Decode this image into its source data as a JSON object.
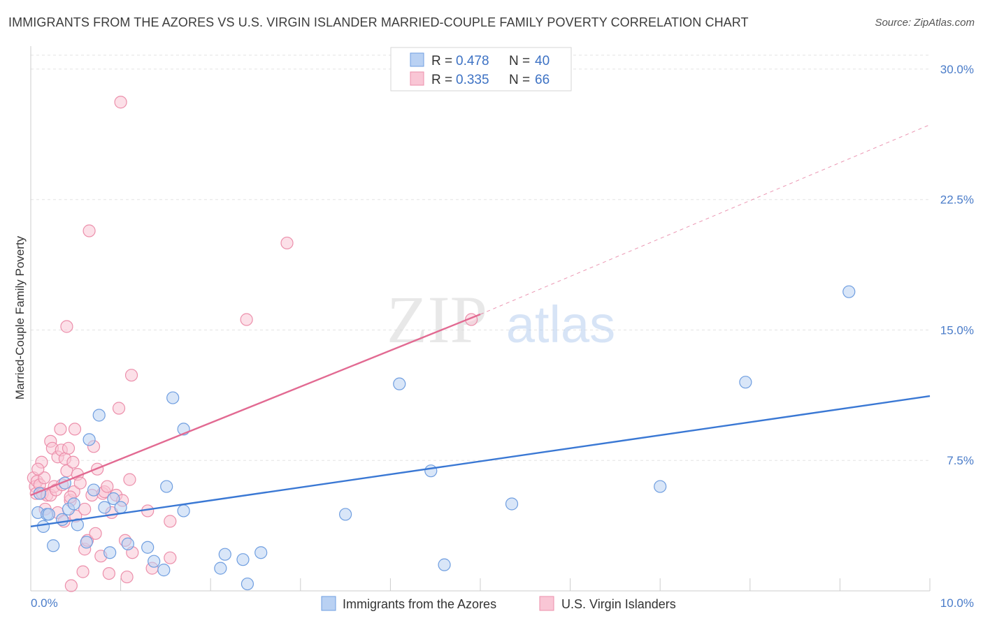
{
  "title": "IMMIGRANTS FROM THE AZORES VS U.S. VIRGIN ISLANDER MARRIED-COUPLE FAMILY POVERTY CORRELATION CHART",
  "source": "Source: ZipAtlas.com",
  "watermark": {
    "zip": "ZIP",
    "atlas": "atlas"
  },
  "legend": {
    "r_label": "R =",
    "n_label": "N =",
    "series": [
      {
        "r": "0.478",
        "n": "40"
      },
      {
        "r": "0.335",
        "n": "66"
      }
    ]
  },
  "colors": {
    "blue_fill": "#b9d1f3",
    "blue_stroke": "#6f9ee0",
    "blue_line": "#3a78d4",
    "pink_fill": "#f9c6d5",
    "pink_stroke": "#ec8fab",
    "pink_line": "#e26a92"
  },
  "chart_data": {
    "type": "scatter",
    "title": "IMMIGRANTS FROM THE AZORES VS U.S. VIRGIN ISLANDER MARRIED-COUPLE FAMILY POVERTY CORRELATION CHART",
    "xlabel": "",
    "ylabel": "Married-Couple Family Poverty",
    "xlim": [
      0,
      10
    ],
    "ylim": [
      0,
      30.8
    ],
    "x_tick_labels": [
      "0.0%",
      "10.0%"
    ],
    "y_ticks": [
      7.5,
      15.0,
      22.5,
      30.0
    ],
    "y_tick_labels": [
      "7.5%",
      "15.0%",
      "22.5%",
      "30.0%"
    ],
    "grid": true,
    "legend_position": "top-center",
    "series": [
      {
        "name": "Immigrants from the Azores",
        "color": "#6f9ee0",
        "points": [
          [
            0.08,
            4.5
          ],
          [
            0.14,
            3.7
          ],
          [
            0.18,
            4.4
          ],
          [
            0.25,
            2.6
          ],
          [
            0.35,
            4.1
          ],
          [
            0.38,
            6.2
          ],
          [
            0.42,
            4.7
          ],
          [
            0.48,
            5.0
          ],
          [
            0.52,
            3.8
          ],
          [
            0.62,
            2.8
          ],
          [
            0.65,
            8.7
          ],
          [
            0.7,
            5.8
          ],
          [
            0.76,
            10.1
          ],
          [
            0.82,
            4.8
          ],
          [
            0.88,
            2.2
          ],
          [
            0.92,
            5.3
          ],
          [
            1.0,
            4.8
          ],
          [
            1.08,
            2.7
          ],
          [
            1.3,
            2.5
          ],
          [
            1.37,
            1.7
          ],
          [
            1.48,
            1.2
          ],
          [
            1.51,
            6.0
          ],
          [
            1.58,
            11.1
          ],
          [
            1.7,
            4.6
          ],
          [
            1.7,
            9.3
          ],
          [
            2.11,
            1.3
          ],
          [
            2.16,
            2.1
          ],
          [
            2.36,
            1.8
          ],
          [
            2.41,
            0.4
          ],
          [
            2.56,
            2.2
          ],
          [
            3.5,
            4.4
          ],
          [
            4.1,
            11.9
          ],
          [
            4.45,
            6.9
          ],
          [
            4.6,
            1.5
          ],
          [
            5.35,
            5.0
          ],
          [
            7.0,
            6.0
          ],
          [
            7.95,
            12.0
          ],
          [
            9.1,
            17.2
          ],
          [
            0.1,
            5.6
          ],
          [
            0.2,
            4.4
          ]
        ]
      },
      {
        "name": "U.S. Virgin Islanders",
        "color": "#ec8fab",
        "points": [
          [
            0.03,
            6.5
          ],
          [
            0.05,
            6.0
          ],
          [
            0.06,
            5.6
          ],
          [
            0.07,
            6.3
          ],
          [
            0.1,
            6.1
          ],
          [
            0.12,
            7.4
          ],
          [
            0.13,
            5.6
          ],
          [
            0.15,
            6.5
          ],
          [
            0.18,
            5.5
          ],
          [
            0.22,
            8.6
          ],
          [
            0.22,
            5.5
          ],
          [
            0.24,
            8.2
          ],
          [
            0.26,
            6.0
          ],
          [
            0.28,
            5.8
          ],
          [
            0.3,
            7.7
          ],
          [
            0.3,
            4.5
          ],
          [
            0.33,
            9.3
          ],
          [
            0.34,
            8.1
          ],
          [
            0.35,
            6.1
          ],
          [
            0.37,
            4.0
          ],
          [
            0.38,
            7.6
          ],
          [
            0.4,
            6.9
          ],
          [
            0.4,
            15.2
          ],
          [
            0.42,
            8.2
          ],
          [
            0.44,
            5.2
          ],
          [
            0.45,
            0.3
          ],
          [
            0.47,
            7.4
          ],
          [
            0.48,
            5.7
          ],
          [
            0.49,
            9.3
          ],
          [
            0.5,
            4.3
          ],
          [
            0.52,
            6.7
          ],
          [
            0.55,
            6.2
          ],
          [
            0.58,
            1.1
          ],
          [
            0.6,
            2.4
          ],
          [
            0.6,
            4.7
          ],
          [
            0.63,
            2.9
          ],
          [
            0.65,
            20.7
          ],
          [
            0.68,
            5.5
          ],
          [
            0.7,
            8.3
          ],
          [
            0.72,
            3.3
          ],
          [
            0.74,
            7.0
          ],
          [
            0.78,
            2.0
          ],
          [
            0.8,
            5.6
          ],
          [
            0.82,
            5.7
          ],
          [
            0.85,
            6.0
          ],
          [
            0.87,
            1.0
          ],
          [
            0.9,
            4.5
          ],
          [
            0.95,
            5.5
          ],
          [
            0.98,
            10.5
          ],
          [
            1.0,
            28.1
          ],
          [
            1.02,
            5.2
          ],
          [
            1.05,
            2.9
          ],
          [
            1.07,
            0.8
          ],
          [
            1.1,
            6.4
          ],
          [
            1.12,
            12.4
          ],
          [
            1.13,
            2.2
          ],
          [
            1.3,
            4.6
          ],
          [
            1.35,
            1.3
          ],
          [
            1.55,
            4.0
          ],
          [
            1.55,
            1.9
          ],
          [
            2.4,
            15.6
          ],
          [
            2.85,
            20.0
          ],
          [
            4.9,
            15.6
          ],
          [
            0.08,
            7.0
          ],
          [
            0.16,
            4.7
          ],
          [
            0.44,
            5.4
          ]
        ]
      }
    ],
    "trendlines": [
      {
        "series": "Immigrants from the Azores",
        "x": [
          0,
          10
        ],
        "y": [
          3.7,
          11.2
        ],
        "style": "solid"
      },
      {
        "series": "U.S. Virgin Islanders",
        "x": [
          0,
          5.0
        ],
        "y": [
          5.5,
          15.9
        ],
        "style": "solid"
      },
      {
        "series": "U.S. Virgin Islanders",
        "x": [
          5.0,
          10
        ],
        "y": [
          15.9,
          26.8
        ],
        "style": "dashed"
      }
    ]
  }
}
